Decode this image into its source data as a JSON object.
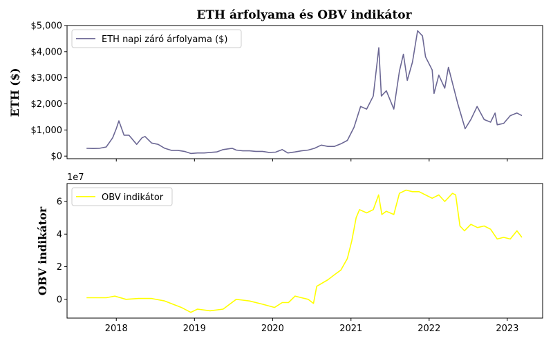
{
  "chart_data": [
    {
      "type": "line",
      "title": "ETH árfolyama és OBV indikátor",
      "ylabel": "ETH ($)",
      "xlabel": "",
      "ylim": [
        -100,
        5000
      ],
      "yticks": [
        0,
        1000,
        2000,
        3000,
        4000,
        5000
      ],
      "ytick_labels": [
        "$0",
        "$1,000",
        "$2,000",
        "$3,000",
        "$4,000",
        "$5,000"
      ],
      "legend_position": "upper-left",
      "grid": false,
      "series": [
        {
          "name": "ETH napi záró árfolyama ($)",
          "color": "#6b6794",
          "x": [
            "2017-08-15",
            "2017-09-15",
            "2017-10-15",
            "2017-11-15",
            "2017-12-15",
            "2018-01-01",
            "2018-01-13",
            "2018-02-06",
            "2018-03-01",
            "2018-04-06",
            "2018-05-01",
            "2018-05-15",
            "2018-06-15",
            "2018-07-15",
            "2018-08-15",
            "2018-09-15",
            "2018-10-15",
            "2018-11-15",
            "2018-12-15",
            "2019-01-15",
            "2019-02-15",
            "2019-03-15",
            "2019-04-15",
            "2019-05-15",
            "2019-06-26",
            "2019-07-15",
            "2019-08-15",
            "2019-09-15",
            "2019-10-15",
            "2019-11-15",
            "2019-12-15",
            "2020-01-15",
            "2020-02-15",
            "2020-03-12",
            "2020-04-15",
            "2020-05-15",
            "2020-06-15",
            "2020-07-15",
            "2020-08-15",
            "2020-09-15",
            "2020-10-15",
            "2020-11-15",
            "2020-12-15",
            "2021-01-15",
            "2021-02-15",
            "2021-03-15",
            "2021-04-15",
            "2021-05-11",
            "2021-05-23",
            "2021-06-15",
            "2021-07-20",
            "2021-08-15",
            "2021-09-03",
            "2021-09-21",
            "2021-10-15",
            "2021-11-08",
            "2021-12-01",
            "2021-12-15",
            "2022-01-15",
            "2022-01-24",
            "2022-02-15",
            "2022-03-15",
            "2022-04-01",
            "2022-05-15",
            "2022-06-18",
            "2022-07-15",
            "2022-08-13",
            "2022-09-15",
            "2022-10-15",
            "2022-11-05",
            "2022-11-15",
            "2022-12-15",
            "2023-01-15",
            "2023-02-15",
            "2023-03-10"
          ],
          "values": [
            300,
            290,
            300,
            350,
            700,
            1050,
            1350,
            800,
            800,
            450,
            700,
            750,
            500,
            450,
            300,
            220,
            220,
            180,
            100,
            120,
            120,
            140,
            160,
            250,
            300,
            230,
            200,
            200,
            180,
            180,
            140,
            150,
            250,
            120,
            160,
            200,
            230,
            300,
            420,
            370,
            370,
            470,
            600,
            1100,
            1900,
            1800,
            2300,
            4150,
            2300,
            2500,
            1800,
            3250,
            3900,
            2900,
            3600,
            4800,
            4600,
            3800,
            3300,
            2400,
            3100,
            2600,
            3400,
            2000,
            1050,
            1400,
            1900,
            1400,
            1300,
            1650,
            1200,
            1250,
            1550,
            1650,
            1550
          ]
        }
      ]
    },
    {
      "type": "line",
      "ylabel": "OBV indikátor",
      "xlabel": "",
      "ylim": [
        -11500000,
        71000000
      ],
      "yticks": [
        0,
        20000000,
        40000000,
        60000000
      ],
      "ytick_labels": [
        "0",
        "2",
        "4",
        "6"
      ],
      "offset_label": "1e7",
      "xticks": [
        "2018-01-01",
        "2019-01-01",
        "2020-01-01",
        "2021-01-01",
        "2022-01-01",
        "2023-01-01"
      ],
      "xtick_labels": [
        "2018",
        "2019",
        "2020",
        "2021",
        "2022",
        "2023"
      ],
      "legend_position": "upper-left",
      "grid": false,
      "series": [
        {
          "name": "OBV indikátor",
          "color": "#ffff00",
          "x": [
            "2017-08-15",
            "2017-11-15",
            "2017-12-25",
            "2018-02-15",
            "2018-04-15",
            "2018-06-15",
            "2018-08-15",
            "2018-11-01",
            "2018-12-15",
            "2019-01-15",
            "2019-03-15",
            "2019-05-15",
            "2019-07-15",
            "2019-08-15",
            "2019-09-15",
            "2019-11-15",
            "2020-01-10",
            "2020-02-15",
            "2020-03-15",
            "2020-04-15",
            "2020-05-15",
            "2020-06-15",
            "2020-07-10",
            "2020-07-25",
            "2020-09-15",
            "2020-10-15",
            "2020-11-15",
            "2020-12-15",
            "2021-01-05",
            "2021-01-25",
            "2021-02-10",
            "2021-03-15",
            "2021-04-15",
            "2021-05-10",
            "2021-05-25",
            "2021-06-15",
            "2021-07-20",
            "2021-08-15",
            "2021-09-15",
            "2021-10-15",
            "2021-11-15",
            "2021-12-15",
            "2022-01-15",
            "2022-02-15",
            "2022-03-15",
            "2022-04-20",
            "2022-05-05",
            "2022-05-25",
            "2022-06-15",
            "2022-07-15",
            "2022-08-15",
            "2022-09-15",
            "2022-10-15",
            "2022-11-15",
            "2022-12-15",
            "2023-01-15",
            "2023-02-15",
            "2023-03-10"
          ],
          "values": [
            1000000,
            1000000,
            2000000,
            0,
            500000,
            500000,
            -1000000,
            -5000000,
            -8000000,
            -6000000,
            -7000000,
            -6000000,
            0,
            -500000,
            -1000000,
            -3000000,
            -5000000,
            -2000000,
            -2000000,
            2000000,
            1000000,
            0,
            -2500000,
            8000000,
            12000000,
            15000000,
            18000000,
            25000000,
            36000000,
            50000000,
            55000000,
            53000000,
            55000000,
            64000000,
            52000000,
            54000000,
            52000000,
            65000000,
            67000000,
            66000000,
            66000000,
            64000000,
            62000000,
            64000000,
            60000000,
            65000000,
            64000000,
            45000000,
            42000000,
            46000000,
            44000000,
            45000000,
            43000000,
            37000000,
            38000000,
            37000000,
            42000000,
            38000000
          ]
        }
      ]
    }
  ]
}
